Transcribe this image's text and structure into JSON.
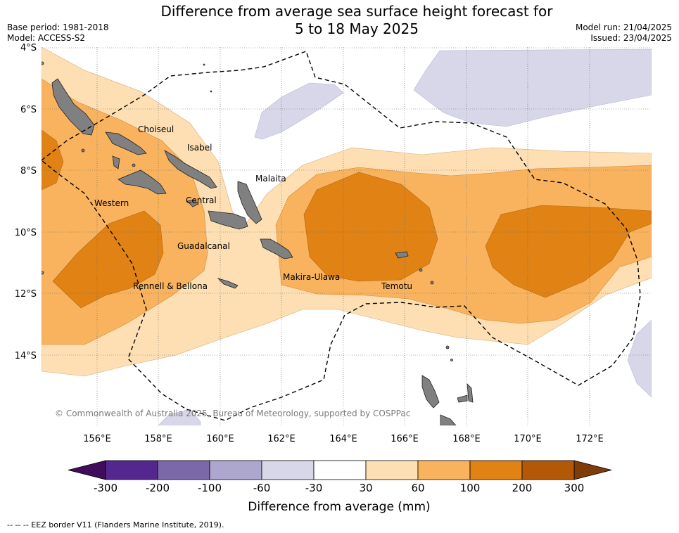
{
  "title": {
    "line1": "Difference from average sea surface height forecast for",
    "line2": "5 to 18 May 2025"
  },
  "meta": {
    "base_period": "Base period: 1981-2018",
    "model": "Model: ACCESS-S2",
    "model_run": "Model run: 21/04/2025",
    "issued": "Issued: 23/04/2025"
  },
  "axes": {
    "lat_labels": [
      "4°S",
      "6°S",
      "8°S",
      "10°S",
      "12°S",
      "14°S"
    ],
    "lon_labels": [
      "156°E",
      "158°E",
      "160°E",
      "162°E",
      "164°E",
      "166°E",
      "168°E",
      "170°E",
      "172°E"
    ]
  },
  "provinces": [
    {
      "name": "Choiseul"
    },
    {
      "name": "Isabel"
    },
    {
      "name": "Malaita"
    },
    {
      "name": "Western"
    },
    {
      "name": "Central"
    },
    {
      "name": "Guadalcanal"
    },
    {
      "name": "Makira-Ulawa"
    },
    {
      "name": "Rennell & Bellona"
    },
    {
      "name": "Temotu"
    }
  ],
  "copyright": "© Commonwealth of Australia 2025, Bureau of Meteorology, supported by COSPPac",
  "colorbar": {
    "label": "Difference from average (mm)",
    "ticks": [
      "-300",
      "-200",
      "-100",
      "-60",
      "-30",
      "30",
      "60",
      "100",
      "200",
      "300"
    ],
    "colors": [
      "#54278f",
      "#7b68a8",
      "#ada6cf",
      "#d7d7e9",
      "#ffffff",
      "#fddfb3",
      "#f9b35e",
      "#e08214",
      "#b35806"
    ],
    "under_color": "#3f0d5c",
    "over_color": "#7f3b08"
  },
  "footer": "--  --  -- EEZ border V11 (Flanders Marine Institute, 2019)."
}
